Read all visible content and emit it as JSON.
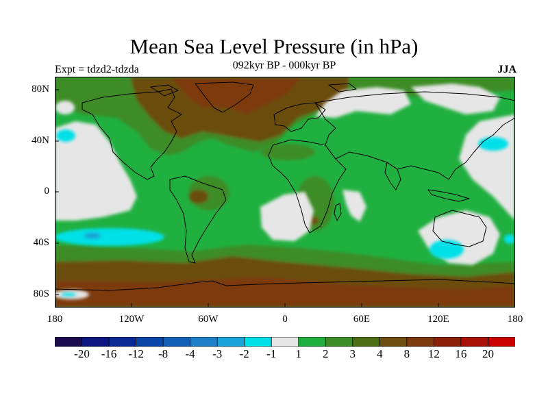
{
  "title": "Mean Sea Level Pressure (in hPa)",
  "experiment_label": "Expt = tdzd2-tdzda",
  "period_label": "092kyr BP - 000kyr BP",
  "season_label": "JJA",
  "axes": {
    "lat_labels": [
      "80N",
      "40N",
      "0",
      "40S",
      "80S"
    ],
    "lon_labels": [
      "180",
      "120W",
      "60W",
      "0",
      "60E",
      "120E",
      "180"
    ]
  },
  "colorbar": {
    "colors": [
      "#1a0a4e",
      "#0d1580",
      "#0a2a96",
      "#0a45a8",
      "#1060b8",
      "#1e80c8",
      "#18a4d8",
      "#00e0e8",
      "#e6e6e6",
      "#20b040",
      "#3c8c28",
      "#4c6e14",
      "#6b4e10",
      "#7d3a0e",
      "#8a2008",
      "#a81206",
      "#c80000"
    ],
    "labels": [
      "-20",
      "-16",
      "-12",
      "-8",
      "-4",
      "-3",
      "-2",
      "-1",
      "1",
      "2",
      "3",
      "4",
      "8",
      "12",
      "16",
      "20"
    ]
  },
  "map_colors": {
    "land_outline": "#000000",
    "background_field": "#20b040"
  }
}
